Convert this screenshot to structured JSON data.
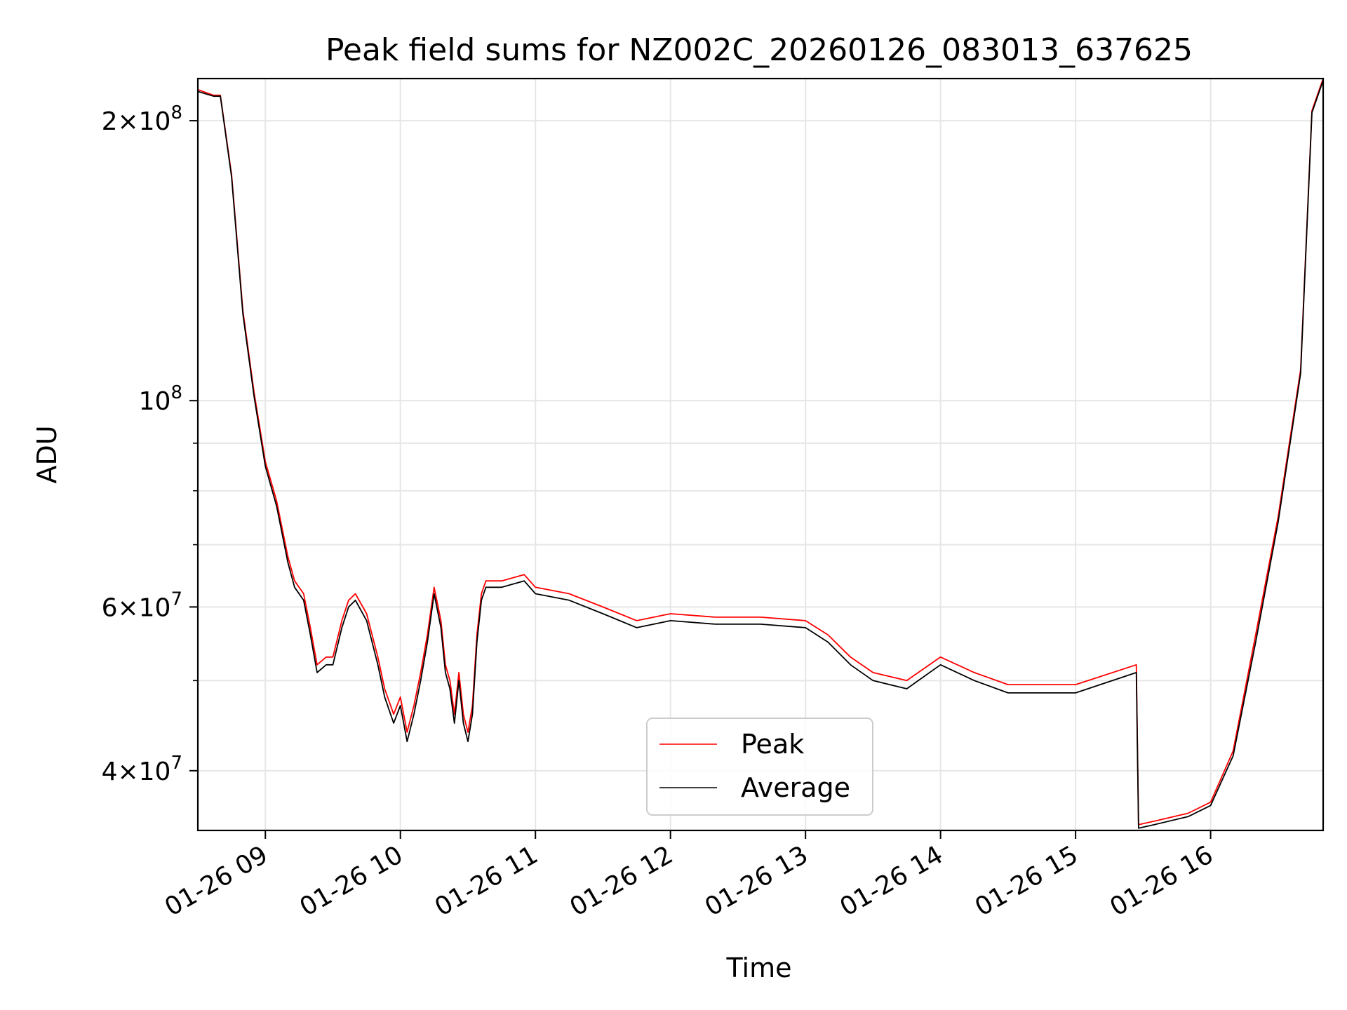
{
  "chart_data": {
    "type": "line",
    "title": "Peak field sums for NZ002C_20260126_083013_637625",
    "xlabel": "Time",
    "ylabel": "ADU",
    "yscale": "log",
    "grid": true,
    "legend_position": "lower-center",
    "xlim": [
      "2026-01-26 08:30",
      "2026-01-26 16:50"
    ],
    "ylim": [
      34500000,
      222000000
    ],
    "x_ticks": [
      {
        "value": "2026-01-26 09:00",
        "label": "01-26 09"
      },
      {
        "value": "2026-01-26 10:00",
        "label": "01-26 10"
      },
      {
        "value": "2026-01-26 11:00",
        "label": "01-26 11"
      },
      {
        "value": "2026-01-26 12:00",
        "label": "01-26 12"
      },
      {
        "value": "2026-01-26 13:00",
        "label": "01-26 13"
      },
      {
        "value": "2026-01-26 14:00",
        "label": "01-26 14"
      },
      {
        "value": "2026-01-26 15:00",
        "label": "01-26 15"
      },
      {
        "value": "2026-01-26 16:00",
        "label": "01-26 16"
      }
    ],
    "y_major_ticks": [
      {
        "value": 40000000,
        "mantissa": "4",
        "exponent": "7"
      },
      {
        "value": 60000000,
        "mantissa": "6",
        "exponent": "7"
      },
      {
        "value": 100000000,
        "mantissa": "",
        "exponent": "8"
      },
      {
        "value": 200000000,
        "mantissa": "2",
        "exponent": "8"
      }
    ],
    "y_minor_ticks": [
      50000000,
      70000000,
      80000000,
      90000000
    ],
    "series": [
      {
        "name": "Peak",
        "color": "#ff0000",
        "x": [
          "2026-01-26 08:30",
          "2026-01-26 08:37",
          "2026-01-26 08:40",
          "2026-01-26 08:45",
          "2026-01-26 08:50",
          "2026-01-26 08:55",
          "2026-01-26 09:00",
          "2026-01-26 09:05",
          "2026-01-26 09:10",
          "2026-01-26 09:13",
          "2026-01-26 09:17",
          "2026-01-26 09:20",
          "2026-01-26 09:23",
          "2026-01-26 09:27",
          "2026-01-26 09:30",
          "2026-01-26 09:34",
          "2026-01-26 09:37",
          "2026-01-26 09:40",
          "2026-01-26 09:45",
          "2026-01-26 09:50",
          "2026-01-26 09:53",
          "2026-01-26 09:57",
          "2026-01-26 10:00",
          "2026-01-26 10:03",
          "2026-01-26 10:06",
          "2026-01-26 10:09",
          "2026-01-26 10:12",
          "2026-01-26 10:15",
          "2026-01-26 10:18",
          "2026-01-26 10:20",
          "2026-01-26 10:22",
          "2026-01-26 10:24",
          "2026-01-26 10:26",
          "2026-01-26 10:28",
          "2026-01-26 10:30",
          "2026-01-26 10:32",
          "2026-01-26 10:34",
          "2026-01-26 10:36",
          "2026-01-26 10:38",
          "2026-01-26 10:45",
          "2026-01-26 10:55",
          "2026-01-26 11:00",
          "2026-01-26 11:15",
          "2026-01-26 11:30",
          "2026-01-26 11:45",
          "2026-01-26 12:00",
          "2026-01-26 12:20",
          "2026-01-26 12:40",
          "2026-01-26 13:00",
          "2026-01-26 13:10",
          "2026-01-26 13:20",
          "2026-01-26 13:30",
          "2026-01-26 13:45",
          "2026-01-26 14:00",
          "2026-01-26 14:15",
          "2026-01-26 14:30",
          "2026-01-26 15:00",
          "2026-01-26 15:27",
          "2026-01-26 15:28",
          "2026-01-26 15:35",
          "2026-01-26 15:50",
          "2026-01-26 16:00",
          "2026-01-26 16:10",
          "2026-01-26 16:20",
          "2026-01-26 16:30",
          "2026-01-26 16:40",
          "2026-01-26 16:45",
          "2026-01-26 16:50"
        ],
        "y": [
          216000000,
          213000000,
          213000000,
          175000000,
          125000000,
          102000000,
          86000000,
          78000000,
          68000000,
          64000000,
          62000000,
          57000000,
          52000000,
          53000000,
          53000000,
          58000000,
          61000000,
          62000000,
          59000000,
          53000000,
          49000000,
          46000000,
          48000000,
          44000000,
          47000000,
          51000000,
          56000000,
          63000000,
          58000000,
          52000000,
          50000000,
          46000000,
          51000000,
          46000000,
          44000000,
          47000000,
          56000000,
          62000000,
          64000000,
          64000000,
          65000000,
          63000000,
          62000000,
          60000000,
          58000000,
          59000000,
          58500000,
          58500000,
          58000000,
          56000000,
          53000000,
          51000000,
          50000000,
          53000000,
          51000000,
          49500000,
          49500000,
          52000000,
          35000000,
          35300000,
          36000000,
          37000000,
          42000000,
          56000000,
          75000000,
          108000000,
          205000000,
          222000000
        ]
      },
      {
        "name": "Average",
        "color": "#000000",
        "x": [
          "2026-01-26 08:30",
          "2026-01-26 08:37",
          "2026-01-26 08:40",
          "2026-01-26 08:45",
          "2026-01-26 08:50",
          "2026-01-26 08:55",
          "2026-01-26 09:00",
          "2026-01-26 09:05",
          "2026-01-26 09:10",
          "2026-01-26 09:13",
          "2026-01-26 09:17",
          "2026-01-26 09:20",
          "2026-01-26 09:23",
          "2026-01-26 09:27",
          "2026-01-26 09:30",
          "2026-01-26 09:34",
          "2026-01-26 09:37",
          "2026-01-26 09:40",
          "2026-01-26 09:45",
          "2026-01-26 09:50",
          "2026-01-26 09:53",
          "2026-01-26 09:57",
          "2026-01-26 10:00",
          "2026-01-26 10:03",
          "2026-01-26 10:06",
          "2026-01-26 10:09",
          "2026-01-26 10:12",
          "2026-01-26 10:15",
          "2026-01-26 10:18",
          "2026-01-26 10:20",
          "2026-01-26 10:22",
          "2026-01-26 10:24",
          "2026-01-26 10:26",
          "2026-01-26 10:28",
          "2026-01-26 10:30",
          "2026-01-26 10:32",
          "2026-01-26 10:34",
          "2026-01-26 10:36",
          "2026-01-26 10:38",
          "2026-01-26 10:45",
          "2026-01-26 10:55",
          "2026-01-26 11:00",
          "2026-01-26 11:15",
          "2026-01-26 11:30",
          "2026-01-26 11:45",
          "2026-01-26 12:00",
          "2026-01-26 12:20",
          "2026-01-26 12:40",
          "2026-01-26 13:00",
          "2026-01-26 13:10",
          "2026-01-26 13:20",
          "2026-01-26 13:30",
          "2026-01-26 13:45",
          "2026-01-26 14:00",
          "2026-01-26 14:15",
          "2026-01-26 14:30",
          "2026-01-26 15:00",
          "2026-01-26 15:27",
          "2026-01-26 15:28",
          "2026-01-26 15:35",
          "2026-01-26 15:50",
          "2026-01-26 16:00",
          "2026-01-26 16:10",
          "2026-01-26 16:20",
          "2026-01-26 16:30",
          "2026-01-26 16:40",
          "2026-01-26 16:45",
          "2026-01-26 16:50"
        ],
        "y": [
          215000000,
          212500000,
          212500000,
          174000000,
          124000000,
          101000000,
          85000000,
          77000000,
          67000000,
          63000000,
          61000000,
          56000000,
          51000000,
          52000000,
          52000000,
          57000000,
          60000000,
          61000000,
          58000000,
          52000000,
          48000000,
          45000000,
          47000000,
          43000000,
          46000000,
          50000000,
          55000000,
          62000000,
          57000000,
          51000000,
          49000000,
          45000000,
          50000000,
          45000000,
          43000000,
          46000000,
          55000000,
          61000000,
          63000000,
          63000000,
          64000000,
          62000000,
          61000000,
          59000000,
          57000000,
          58000000,
          57500000,
          57500000,
          57000000,
          55000000,
          52000000,
          50000000,
          49000000,
          52000000,
          50000000,
          48500000,
          48500000,
          51000000,
          34700000,
          35000000,
          35700000,
          36700000,
          41500000,
          55000000,
          74000000,
          107000000,
          204000000,
          221000000
        ]
      }
    ]
  }
}
